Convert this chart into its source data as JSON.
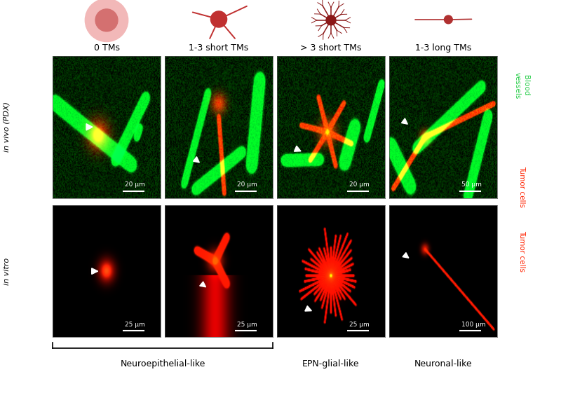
{
  "bg_color": "#ffffff",
  "top_labels": [
    "0 TMs",
    "1-3 short TMs",
    "> 3 short TMs",
    "1-3 long TMs"
  ],
  "left_label_top": "in vivo (PDX)",
  "left_label_bot": "in vitro",
  "right_label_green": "Blood\nvessels",
  "right_label_red_top": "Tumor cells",
  "right_label_red_bot": "Tumor cells",
  "bottom_labels": [
    "Neuroepithelial-like",
    "EPN-glial-like",
    "Neuronal-like"
  ],
  "scale_bars_top": [
    "20 μm",
    "20 μm",
    "20 μm",
    "50 μm"
  ],
  "scale_bars_bottom": [
    "25 μm",
    "25 μm",
    "25 μm",
    "100 μm"
  ],
  "green_color": "#22cc44",
  "red_color": "#ff2200",
  "illus_color_round": "#e8a0a0",
  "illus_color_dark": "#c03030",
  "illus_color_astro": "#8b1818",
  "illus_color_long": "#b03030"
}
